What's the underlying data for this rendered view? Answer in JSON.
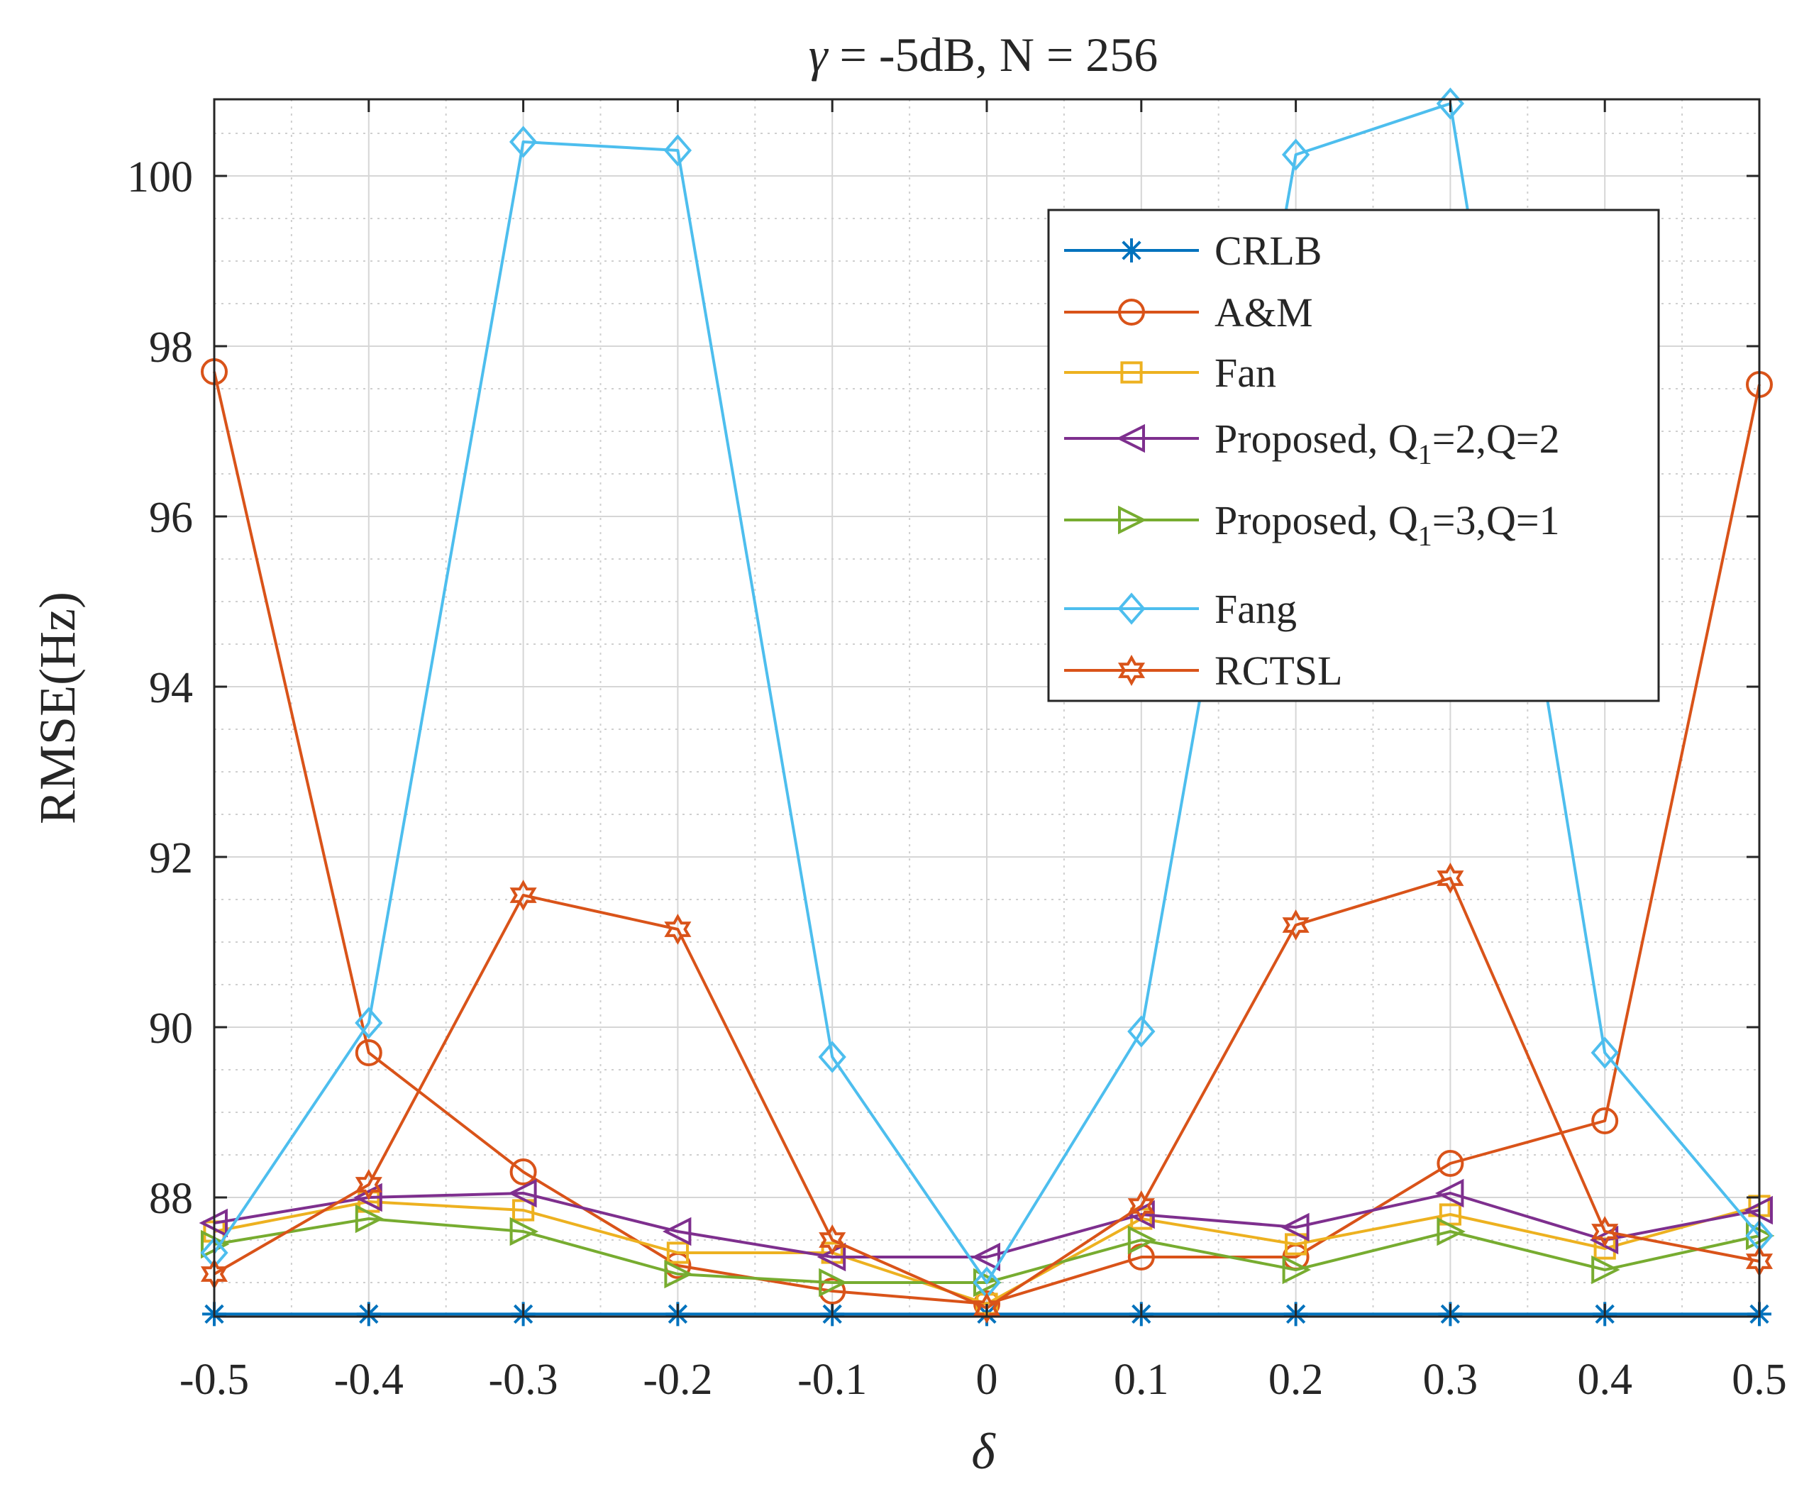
{
  "chart_data": {
    "type": "line",
    "title_gamma": "γ",
    "title_rest": " = -5dB, N = 256",
    "xlabel": "δ",
    "ylabel": "RMSE(Hz)",
    "xlim": [
      -0.5,
      0.5
    ],
    "ylim": [
      86.6,
      100.9
    ],
    "grid": true,
    "minor_grid": true,
    "legend_position": "top-right",
    "x": [
      -0.5,
      -0.4,
      -0.3,
      -0.2,
      -0.1,
      0,
      0.1,
      0.2,
      0.3,
      0.4,
      0.5
    ],
    "x_tick_labels": [
      "-0.5",
      "-0.4",
      "-0.3",
      "-0.2",
      "-0.1",
      "0",
      "0.1",
      "0.2",
      "0.3",
      "0.4",
      "0.5"
    ],
    "y_ticks": [
      88,
      90,
      92,
      94,
      96,
      98,
      100
    ],
    "y_tick_labels": [
      "88",
      "90",
      "92",
      "94",
      "96",
      "98",
      "100"
    ],
    "series": [
      {
        "name": "CRLB",
        "color": "#0072BD",
        "marker": "asterisk",
        "values": [
          86.63,
          86.63,
          86.63,
          86.63,
          86.63,
          86.63,
          86.63,
          86.63,
          86.63,
          86.63,
          86.63
        ]
      },
      {
        "name": "A&M",
        "color": "#D95319",
        "marker": "circle",
        "values": [
          97.7,
          89.7,
          88.3,
          87.2,
          86.9,
          86.75,
          87.3,
          87.3,
          88.4,
          88.9,
          97.55
        ]
      },
      {
        "name": "Fan",
        "color": "#EDB120",
        "marker": "square",
        "values": [
          87.6,
          87.95,
          87.85,
          87.35,
          87.35,
          86.75,
          87.75,
          87.45,
          87.8,
          87.4,
          87.9
        ]
      },
      {
        "name": "Proposed, Q",
        "name_sub": "1",
        "name_suffix": "=2,Q=2",
        "color": "#7E2F8E",
        "marker": "triangle-left",
        "values": [
          87.7,
          88.0,
          88.05,
          87.6,
          87.3,
          87.3,
          87.8,
          87.65,
          88.05,
          87.5,
          87.85
        ]
      },
      {
        "name": "Proposed, Q",
        "name_sub": "1",
        "name_suffix": "=3,Q=1",
        "color": "#77AC30",
        "marker": "triangle-right",
        "values": [
          87.45,
          87.75,
          87.6,
          87.1,
          87.0,
          87.0,
          87.5,
          87.15,
          87.6,
          87.15,
          87.55
        ]
      },
      {
        "name": "Fang",
        "color": "#4DBEEE",
        "marker": "diamond",
        "values": [
          87.35,
          90.05,
          100.4,
          100.3,
          89.65,
          87.0,
          89.95,
          100.25,
          100.85,
          89.7,
          87.55
        ]
      },
      {
        "name": "RCTSL",
        "color": "#D95319",
        "marker": "hexagram",
        "values": [
          87.1,
          88.15,
          91.55,
          91.15,
          87.5,
          86.7,
          87.9,
          91.2,
          91.75,
          87.6,
          87.25
        ]
      }
    ]
  }
}
